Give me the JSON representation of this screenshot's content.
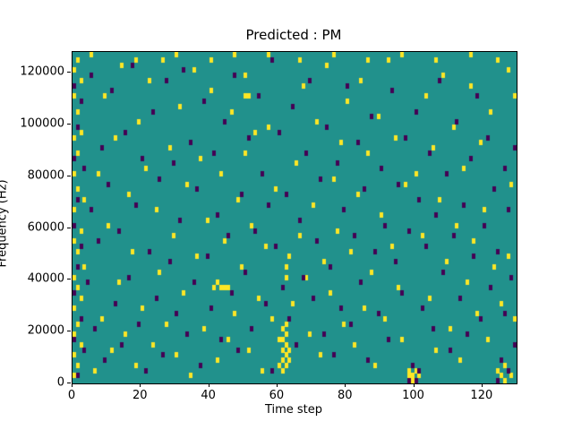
{
  "chart_data": {
    "type": "heatmap",
    "title": "Predicted : PM",
    "xlabel": "Time step",
    "ylabel": "Frequency (Hz)",
    "xlim": [
      0,
      130
    ],
    "ylim": [
      0,
      128000
    ],
    "grid_size": {
      "cols": 130,
      "rows": 64
    },
    "hz_per_row": 2000,
    "x_ticks": [
      0,
      20,
      40,
      60,
      80,
      100,
      120
    ],
    "y_ticks": [
      0,
      20000,
      40000,
      60000,
      80000,
      100000,
      120000
    ],
    "colors": {
      "background": "#21918c",
      "high": "#fde725",
      "low": "#440154",
      "axis": "#000000"
    },
    "legend": null,
    "cells_high": [
      [
        0,
        1
      ],
      [
        0,
        5
      ],
      [
        0,
        9
      ],
      [
        0,
        14
      ],
      [
        0,
        20
      ],
      [
        0,
        27
      ],
      [
        0,
        33
      ],
      [
        0,
        40
      ],
      [
        0,
        47
      ],
      [
        0,
        55
      ],
      [
        0,
        60
      ],
      [
        1,
        3
      ],
      [
        1,
        11
      ],
      [
        1,
        18
      ],
      [
        1,
        25
      ],
      [
        1,
        37
      ],
      [
        1,
        44
      ],
      [
        1,
        52
      ],
      [
        1,
        62
      ],
      [
        2,
        7
      ],
      [
        2,
        16
      ],
      [
        2,
        29
      ],
      [
        2,
        48
      ],
      [
        2,
        58
      ],
      [
        3,
        22
      ],
      [
        3,
        35
      ],
      [
        5,
        63
      ],
      [
        6,
        2
      ],
      [
        7,
        40
      ],
      [
        8,
        12
      ],
      [
        9,
        55
      ],
      [
        10,
        30
      ],
      [
        11,
        6
      ],
      [
        12,
        47
      ],
      [
        13,
        19
      ],
      [
        14,
        61
      ],
      [
        15,
        9
      ],
      [
        16,
        36
      ],
      [
        17,
        25
      ],
      [
        18,
        3
      ],
      [
        18,
        62
      ],
      [
        19,
        50
      ],
      [
        20,
        14
      ],
      [
        21,
        41
      ],
      [
        22,
        58
      ],
      [
        23,
        7
      ],
      [
        24,
        33
      ],
      [
        25,
        21
      ],
      [
        26,
        62
      ],
      [
        27,
        11
      ],
      [
        28,
        45
      ],
      [
        29,
        28
      ],
      [
        30,
        5
      ],
      [
        30,
        63
      ],
      [
        31,
        53
      ],
      [
        32,
        17
      ],
      [
        33,
        38
      ],
      [
        34,
        1
      ],
      [
        35,
        60
      ],
      [
        36,
        24
      ],
      [
        37,
        43
      ],
      [
        38,
        10
      ],
      [
        39,
        31
      ],
      [
        40,
        56
      ],
      [
        40,
        62
      ],
      [
        41,
        18
      ],
      [
        42,
        4
      ],
      [
        42,
        19
      ],
      [
        43,
        40
      ],
      [
        43,
        18
      ],
      [
        44,
        18
      ],
      [
        44,
        27
      ],
      [
        45,
        18
      ],
      [
        45,
        8
      ],
      [
        46,
        52
      ],
      [
        47,
        13
      ],
      [
        47,
        63
      ],
      [
        48,
        35
      ],
      [
        49,
        22
      ],
      [
        50,
        59
      ],
      [
        50,
        44
      ],
      [
        51,
        6
      ],
      [
        51,
        55
      ],
      [
        50,
        55
      ],
      [
        52,
        30
      ],
      [
        53,
        48
      ],
      [
        54,
        16
      ],
      [
        55,
        2
      ],
      [
        56,
        26
      ],
      [
        57,
        49
      ],
      [
        57,
        63
      ],
      [
        58,
        12
      ],
      [
        59,
        37
      ],
      [
        60,
        8
      ],
      [
        60,
        3
      ],
      [
        61,
        2
      ],
      [
        61,
        4
      ],
      [
        61,
        6
      ],
      [
        61,
        8
      ],
      [
        61,
        10
      ],
      [
        62,
        3
      ],
      [
        62,
        5
      ],
      [
        62,
        7
      ],
      [
        62,
        9
      ],
      [
        62,
        11
      ],
      [
        62,
        20
      ],
      [
        62,
        22
      ],
      [
        63,
        4
      ],
      [
        63,
        6
      ],
      [
        63,
        24
      ],
      [
        64,
        15
      ],
      [
        65,
        42
      ],
      [
        66,
        28
      ],
      [
        66,
        62
      ],
      [
        67,
        57
      ],
      [
        68,
        20
      ],
      [
        69,
        9
      ],
      [
        70,
        34
      ],
      [
        71,
        50
      ],
      [
        72,
        5
      ],
      [
        73,
        23
      ],
      [
        74,
        61
      ],
      [
        75,
        17
      ],
      [
        76,
        39
      ],
      [
        76,
        63
      ],
      [
        77,
        29
      ],
      [
        78,
        46
      ],
      [
        79,
        11
      ],
      [
        80,
        54
      ],
      [
        81,
        25
      ],
      [
        82,
        7
      ],
      [
        83,
        36
      ],
      [
        84,
        58
      ],
      [
        85,
        14
      ],
      [
        86,
        44
      ],
      [
        86,
        62
      ],
      [
        87,
        21
      ],
      [
        88,
        3
      ],
      [
        89,
        51
      ],
      [
        90,
        32
      ],
      [
        91,
        12
      ],
      [
        92,
        62
      ],
      [
        93,
        26
      ],
      [
        94,
        47
      ],
      [
        95,
        18
      ],
      [
        96,
        8
      ],
      [
        96,
        63
      ],
      [
        97,
        38
      ],
      [
        98,
        1
      ],
      [
        98,
        2
      ],
      [
        99,
        0
      ],
      [
        99,
        1
      ],
      [
        100,
        2
      ],
      [
        100,
        40
      ],
      [
        101,
        1
      ],
      [
        102,
        28
      ],
      [
        103,
        55
      ],
      [
        104,
        16
      ],
      [
        105,
        45
      ],
      [
        106,
        6
      ],
      [
        106,
        62
      ],
      [
        107,
        35
      ],
      [
        108,
        59
      ],
      [
        109,
        23
      ],
      [
        110,
        10
      ],
      [
        111,
        49
      ],
      [
        112,
        30
      ],
      [
        113,
        4
      ],
      [
        114,
        41
      ],
      [
        115,
        19
      ],
      [
        116,
        57
      ],
      [
        116,
        63
      ],
      [
        117,
        27
      ],
      [
        118,
        13
      ],
      [
        119,
        46
      ],
      [
        120,
        33
      ],
      [
        121,
        8
      ],
      [
        122,
        52
      ],
      [
        123,
        22
      ],
      [
        124,
        2
      ],
      [
        124,
        62
      ],
      [
        125,
        1
      ],
      [
        125,
        15
      ],
      [
        126,
        0
      ],
      [
        126,
        3
      ],
      [
        127,
        60
      ],
      [
        127,
        24
      ],
      [
        128,
        1
      ],
      [
        128,
        38
      ],
      [
        129,
        12
      ],
      [
        129,
        55
      ]
    ],
    "cells_low": [
      [
        0,
        8
      ],
      [
        0,
        17
      ],
      [
        0,
        30
      ],
      [
        0,
        43
      ],
      [
        0,
        57
      ],
      [
        1,
        1
      ],
      [
        1,
        22
      ],
      [
        1,
        35
      ],
      [
        1,
        49
      ],
      [
        2,
        12
      ],
      [
        2,
        26
      ],
      [
        2,
        54
      ],
      [
        3,
        6
      ],
      [
        3,
        41
      ],
      [
        4,
        19
      ],
      [
        5,
        33
      ],
      [
        5,
        59
      ],
      [
        6,
        10
      ],
      [
        7,
        27
      ],
      [
        8,
        45
      ],
      [
        9,
        4
      ],
      [
        10,
        38
      ],
      [
        11,
        56
      ],
      [
        12,
        15
      ],
      [
        13,
        29
      ],
      [
        14,
        7
      ],
      [
        15,
        48
      ],
      [
        16,
        20
      ],
      [
        17,
        61
      ],
      [
        18,
        34
      ],
      [
        19,
        11
      ],
      [
        20,
        43
      ],
      [
        21,
        2
      ],
      [
        22,
        25
      ],
      [
        23,
        52
      ],
      [
        24,
        16
      ],
      [
        25,
        39
      ],
      [
        26,
        5
      ],
      [
        27,
        58
      ],
      [
        28,
        23
      ],
      [
        29,
        42
      ],
      [
        30,
        13
      ],
      [
        31,
        31
      ],
      [
        32,
        60
      ],
      [
        33,
        9
      ],
      [
        34,
        46
      ],
      [
        35,
        19
      ],
      [
        36,
        37
      ],
      [
        37,
        3
      ],
      [
        38,
        54
      ],
      [
        39,
        24
      ],
      [
        40,
        14
      ],
      [
        41,
        44
      ],
      [
        42,
        32
      ],
      [
        43,
        8
      ],
      [
        44,
        50
      ],
      [
        45,
        28
      ],
      [
        46,
        17
      ],
      [
        47,
        59
      ],
      [
        48,
        6
      ],
      [
        49,
        36
      ],
      [
        50,
        21
      ],
      [
        51,
        47
      ],
      [
        52,
        10
      ],
      [
        53,
        29
      ],
      [
        54,
        55
      ],
      [
        55,
        40
      ],
      [
        56,
        15
      ],
      [
        57,
        34
      ],
      [
        58,
        2
      ],
      [
        58,
        62
      ],
      [
        59,
        26
      ],
      [
        60,
        48
      ],
      [
        61,
        18
      ],
      [
        62,
        36
      ],
      [
        63,
        12
      ],
      [
        64,
        53
      ],
      [
        65,
        7
      ],
      [
        66,
        31
      ],
      [
        67,
        20
      ],
      [
        68,
        44
      ],
      [
        69,
        58
      ],
      [
        70,
        16
      ],
      [
        71,
        27
      ],
      [
        72,
        39
      ],
      [
        73,
        9
      ],
      [
        74,
        49
      ],
      [
        75,
        22
      ],
      [
        76,
        5
      ],
      [
        77,
        42
      ],
      [
        78,
        14
      ],
      [
        79,
        33
      ],
      [
        80,
        57
      ],
      [
        81,
        11
      ],
      [
        82,
        28
      ],
      [
        83,
        46
      ],
      [
        84,
        19
      ],
      [
        85,
        37
      ],
      [
        86,
        4
      ],
      [
        87,
        51
      ],
      [
        88,
        25
      ],
      [
        89,
        13
      ],
      [
        90,
        41
      ],
      [
        91,
        30
      ],
      [
        92,
        8
      ],
      [
        93,
        56
      ],
      [
        94,
        23
      ],
      [
        95,
        38
      ],
      [
        96,
        17
      ],
      [
        97,
        47
      ],
      [
        98,
        0
      ],
      [
        98,
        29
      ],
      [
        99,
        3
      ],
      [
        100,
        0
      ],
      [
        100,
        52
      ],
      [
        101,
        2
      ],
      [
        101,
        35
      ],
      [
        102,
        14
      ],
      [
        103,
        26
      ],
      [
        104,
        44
      ],
      [
        105,
        10
      ],
      [
        106,
        32
      ],
      [
        107,
        58
      ],
      [
        108,
        21
      ],
      [
        109,
        40
      ],
      [
        110,
        6
      ],
      [
        111,
        28
      ],
      [
        112,
        50
      ],
      [
        113,
        16
      ],
      [
        114,
        34
      ],
      [
        115,
        9
      ],
      [
        116,
        43
      ],
      [
        117,
        24
      ],
      [
        118,
        55
      ],
      [
        119,
        12
      ],
      [
        120,
        30
      ],
      [
        121,
        47
      ],
      [
        122,
        18
      ],
      [
        123,
        37
      ],
      [
        124,
        0
      ],
      [
        124,
        25
      ],
      [
        125,
        4
      ],
      [
        126,
        13
      ],
      [
        126,
        41
      ],
      [
        127,
        2
      ],
      [
        127,
        33
      ],
      [
        128,
        20
      ],
      [
        129,
        7
      ],
      [
        129,
        45
      ]
    ]
  }
}
